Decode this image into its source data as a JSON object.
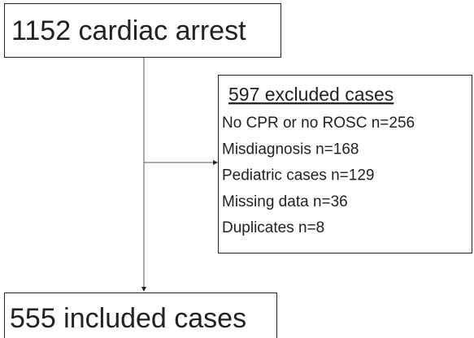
{
  "nodes": {
    "start": {
      "label": "1152 cardiac arrest"
    },
    "excluded": {
      "title": "597 excluded cases",
      "items": [
        "No CPR or no ROSC n=256",
        "Misdiagnosis n=168",
        "Pediatric cases n=129",
        "Missing data n=36",
        "Duplicates n=8"
      ]
    },
    "end": {
      "label": "555 included cases"
    }
  }
}
